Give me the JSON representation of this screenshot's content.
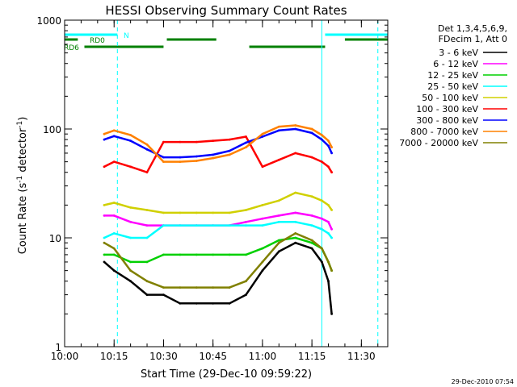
{
  "chart_data": {
    "type": "line",
    "title": "HESSI Observing Summary Count Rates",
    "xlabel": "Start Time (29-Dec-10 09:59:22)",
    "ylabel_main": "Count Rate (s",
    "ylabel_sup1": "-1",
    "ylabel_mid": " detector",
    "ylabel_sup2": "-1",
    "ylabel_end": ")",
    "y_scale": "log",
    "ylim": [
      1,
      1000
    ],
    "xlim": [
      "10:00",
      "11:38"
    ],
    "x_ticks": [
      "10:00",
      "10:15",
      "10:30",
      "10:45",
      "11:00",
      "11:15",
      "11:30"
    ],
    "y_ticks": [
      "1",
      "10",
      "100",
      "1000"
    ],
    "timestamp": "29-Dec-2010 07:54",
    "legend_header": [
      "Det 1,3,4,5,6,9,",
      "FDecim 1, Att 0"
    ],
    "legend_placement": "right",
    "series": [
      {
        "name": "3 - 6 keV",
        "color": "#000000",
        "points": [
          [
            "10:12",
            6
          ],
          [
            "10:15",
            5
          ],
          [
            "10:20",
            4
          ],
          [
            "10:25",
            3
          ],
          [
            "10:30",
            3
          ],
          [
            "10:35",
            2.5
          ],
          [
            "10:40",
            2.5
          ],
          [
            "10:45",
            2.5
          ],
          [
            "10:50",
            2.5
          ],
          [
            "10:55",
            3
          ],
          [
            "11:00",
            5
          ],
          [
            "11:05",
            7.5
          ],
          [
            "11:10",
            9
          ],
          [
            "11:15",
            8
          ],
          [
            "11:18",
            6
          ],
          [
            "11:20",
            4
          ],
          [
            "11:21",
            2
          ]
        ]
      },
      {
        "name": "6 - 12 keV",
        "color": "#ff00ff",
        "points": [
          [
            "10:12",
            16
          ],
          [
            "10:15",
            16
          ],
          [
            "10:20",
            14
          ],
          [
            "10:25",
            13
          ],
          [
            "10:30",
            13
          ],
          [
            "10:35",
            13
          ],
          [
            "10:40",
            13
          ],
          [
            "10:45",
            13
          ],
          [
            "10:50",
            13
          ],
          [
            "10:55",
            14
          ],
          [
            "11:00",
            15
          ],
          [
            "11:05",
            16
          ],
          [
            "11:10",
            17
          ],
          [
            "11:15",
            16
          ],
          [
            "11:18",
            15
          ],
          [
            "11:20",
            14
          ],
          [
            "11:21",
            12
          ]
        ]
      },
      {
        "name": "12 - 25 keV",
        "color": "#00d000",
        "points": [
          [
            "10:12",
            7
          ],
          [
            "10:15",
            7
          ],
          [
            "10:20",
            6
          ],
          [
            "10:25",
            6
          ],
          [
            "10:30",
            7
          ],
          [
            "10:35",
            7
          ],
          [
            "10:40",
            7
          ],
          [
            "10:45",
            7
          ],
          [
            "10:50",
            7
          ],
          [
            "10:55",
            7
          ],
          [
            "11:00",
            8
          ],
          [
            "11:05",
            9.5
          ],
          [
            "11:10",
            10
          ],
          [
            "11:15",
            9
          ],
          [
            "11:18",
            8
          ],
          [
            "11:20",
            6
          ],
          [
            "11:21",
            5
          ]
        ]
      },
      {
        "name": "25 - 50 keV",
        "color": "#00ffff",
        "points": [
          [
            "10:12",
            10
          ],
          [
            "10:15",
            11
          ],
          [
            "10:20",
            10
          ],
          [
            "10:25",
            10
          ],
          [
            "10:30",
            13
          ],
          [
            "10:35",
            13
          ],
          [
            "10:40",
            13
          ],
          [
            "10:45",
            13
          ],
          [
            "10:50",
            13
          ],
          [
            "10:55",
            13
          ],
          [
            "11:00",
            13
          ],
          [
            "11:05",
            14
          ],
          [
            "11:10",
            14
          ],
          [
            "11:15",
            13
          ],
          [
            "11:18",
            12
          ],
          [
            "11:20",
            11
          ],
          [
            "11:21",
            10
          ]
        ]
      },
      {
        "name": "50 - 100 keV",
        "color": "#d0d000",
        "points": [
          [
            "10:12",
            20
          ],
          [
            "10:15",
            21
          ],
          [
            "10:20",
            19
          ],
          [
            "10:25",
            18
          ],
          [
            "10:30",
            17
          ],
          [
            "10:35",
            17
          ],
          [
            "10:40",
            17
          ],
          [
            "10:45",
            17
          ],
          [
            "10:50",
            17
          ],
          [
            "10:55",
            18
          ],
          [
            "11:00",
            20
          ],
          [
            "11:05",
            22
          ],
          [
            "11:10",
            26
          ],
          [
            "11:15",
            24
          ],
          [
            "11:18",
            22
          ],
          [
            "11:20",
            20
          ],
          [
            "11:21",
            18
          ]
        ]
      },
      {
        "name": "100 - 300 keV",
        "color": "#ff0000",
        "points": [
          [
            "10:12",
            45
          ],
          [
            "10:15",
            50
          ],
          [
            "10:20",
            45
          ],
          [
            "10:25",
            40
          ],
          [
            "10:30",
            76
          ],
          [
            "10:35",
            76
          ],
          [
            "10:40",
            76
          ],
          [
            "10:45",
            78
          ],
          [
            "10:50",
            80
          ],
          [
            "10:55",
            85
          ],
          [
            "11:00",
            45
          ],
          [
            "11:05",
            52
          ],
          [
            "11:10",
            60
          ],
          [
            "11:15",
            55
          ],
          [
            "11:18",
            50
          ],
          [
            "11:20",
            45
          ],
          [
            "11:21",
            40
          ]
        ]
      },
      {
        "name": "300 - 800 keV",
        "color": "#0000ff",
        "points": [
          [
            "10:12",
            80
          ],
          [
            "10:15",
            86
          ],
          [
            "10:20",
            78
          ],
          [
            "10:25",
            65
          ],
          [
            "10:30",
            55
          ],
          [
            "10:35",
            55
          ],
          [
            "10:40",
            56
          ],
          [
            "10:45",
            58
          ],
          [
            "10:50",
            63
          ],
          [
            "10:55",
            75
          ],
          [
            "11:00",
            85
          ],
          [
            "11:05",
            97
          ],
          [
            "11:10",
            100
          ],
          [
            "11:15",
            92
          ],
          [
            "11:18",
            80
          ],
          [
            "11:20",
            70
          ],
          [
            "11:21",
            60
          ]
        ]
      },
      {
        "name": "800 - 7000 keV",
        "color": "#ff8000",
        "points": [
          [
            "10:12",
            90
          ],
          [
            "10:15",
            97
          ],
          [
            "10:20",
            88
          ],
          [
            "10:25",
            72
          ],
          [
            "10:30",
            50
          ],
          [
            "10:35",
            50
          ],
          [
            "10:40",
            51
          ],
          [
            "10:45",
            54
          ],
          [
            "10:50",
            58
          ],
          [
            "10:55",
            68
          ],
          [
            "11:00",
            90
          ],
          [
            "11:05",
            105
          ],
          [
            "11:10",
            108
          ],
          [
            "11:15",
            100
          ],
          [
            "11:18",
            88
          ],
          [
            "11:20",
            78
          ],
          [
            "11:21",
            68
          ]
        ]
      },
      {
        "name": "7000 - 20000 keV",
        "color": "#808000",
        "points": [
          [
            "10:12",
            9
          ],
          [
            "10:15",
            8
          ],
          [
            "10:20",
            5
          ],
          [
            "10:25",
            4
          ],
          [
            "10:30",
            3.5
          ],
          [
            "10:35",
            3.5
          ],
          [
            "10:40",
            3.5
          ],
          [
            "10:45",
            3.5
          ],
          [
            "10:50",
            3.5
          ],
          [
            "10:55",
            4
          ],
          [
            "11:00",
            6
          ],
          [
            "11:05",
            9
          ],
          [
            "11:10",
            11
          ],
          [
            "11:15",
            9.5
          ],
          [
            "11:18",
            8
          ],
          [
            "11:20",
            6
          ],
          [
            "11:21",
            5
          ]
        ]
      }
    ],
    "flag_bars": [
      {
        "label": "N",
        "color": "#00ffff",
        "segments": [
          [
            "10:00",
            "10:16"
          ],
          [
            "11:19",
            "11:38"
          ]
        ]
      },
      {
        "label": "RD0",
        "color": "#008000",
        "segments": [
          [
            "10:00",
            "10:04"
          ],
          [
            "10:31",
            "10:46"
          ],
          [
            "11:25",
            "11:38"
          ]
        ]
      },
      {
        "label": "RD6",
        "color": "#008000",
        "segments": [
          [
            "10:06",
            "10:30"
          ],
          [
            "10:56",
            "11:19"
          ]
        ]
      }
    ],
    "vlines": [
      {
        "time": "10:00",
        "color": "#00ffff",
        "style": "solid"
      },
      {
        "time": "10:16",
        "color": "#00ffff",
        "style": "dashed"
      },
      {
        "time": "11:18",
        "color": "#00ffff",
        "style": "solid"
      },
      {
        "time": "11:35",
        "color": "#00ffff",
        "style": "dashed"
      }
    ],
    "grid": false
  }
}
